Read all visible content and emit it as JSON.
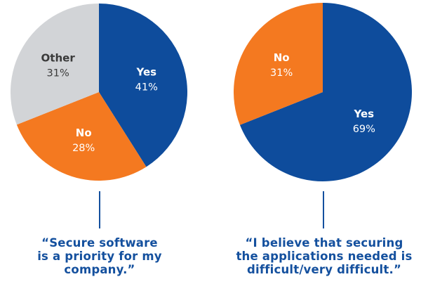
{
  "colors": {
    "yes": "#0e4c9c",
    "no": "#f47920",
    "other": "#d2d4d7",
    "quote": "#14509e",
    "label_dark": "#3a3a3a",
    "label_light": "#ffffff"
  },
  "chart_data": [
    {
      "type": "pie",
      "title": "",
      "slices": [
        {
          "label": "Yes",
          "value": 41,
          "value_label": "41%",
          "color_key": "yes"
        },
        {
          "label": "No",
          "value": 28,
          "value_label": "28%",
          "color_key": "no"
        },
        {
          "label": "Other",
          "value": 31,
          "value_label": "31%",
          "color_key": "other"
        }
      ],
      "start": "12 o'clock, clockwise",
      "caption_lines": [
        "“Secure software",
        "is a priority for my",
        "company.”"
      ]
    },
    {
      "type": "pie",
      "title": "",
      "slices": [
        {
          "label": "Yes",
          "value": 69,
          "value_label": "69%",
          "color_key": "yes"
        },
        {
          "label": "No",
          "value": 31,
          "value_label": "31%",
          "color_key": "no"
        }
      ],
      "start": "12 o'clock, clockwise",
      "caption_lines": [
        "“I believe that securing",
        "the applications needed is",
        "difficult/very difficult.”"
      ]
    }
  ]
}
